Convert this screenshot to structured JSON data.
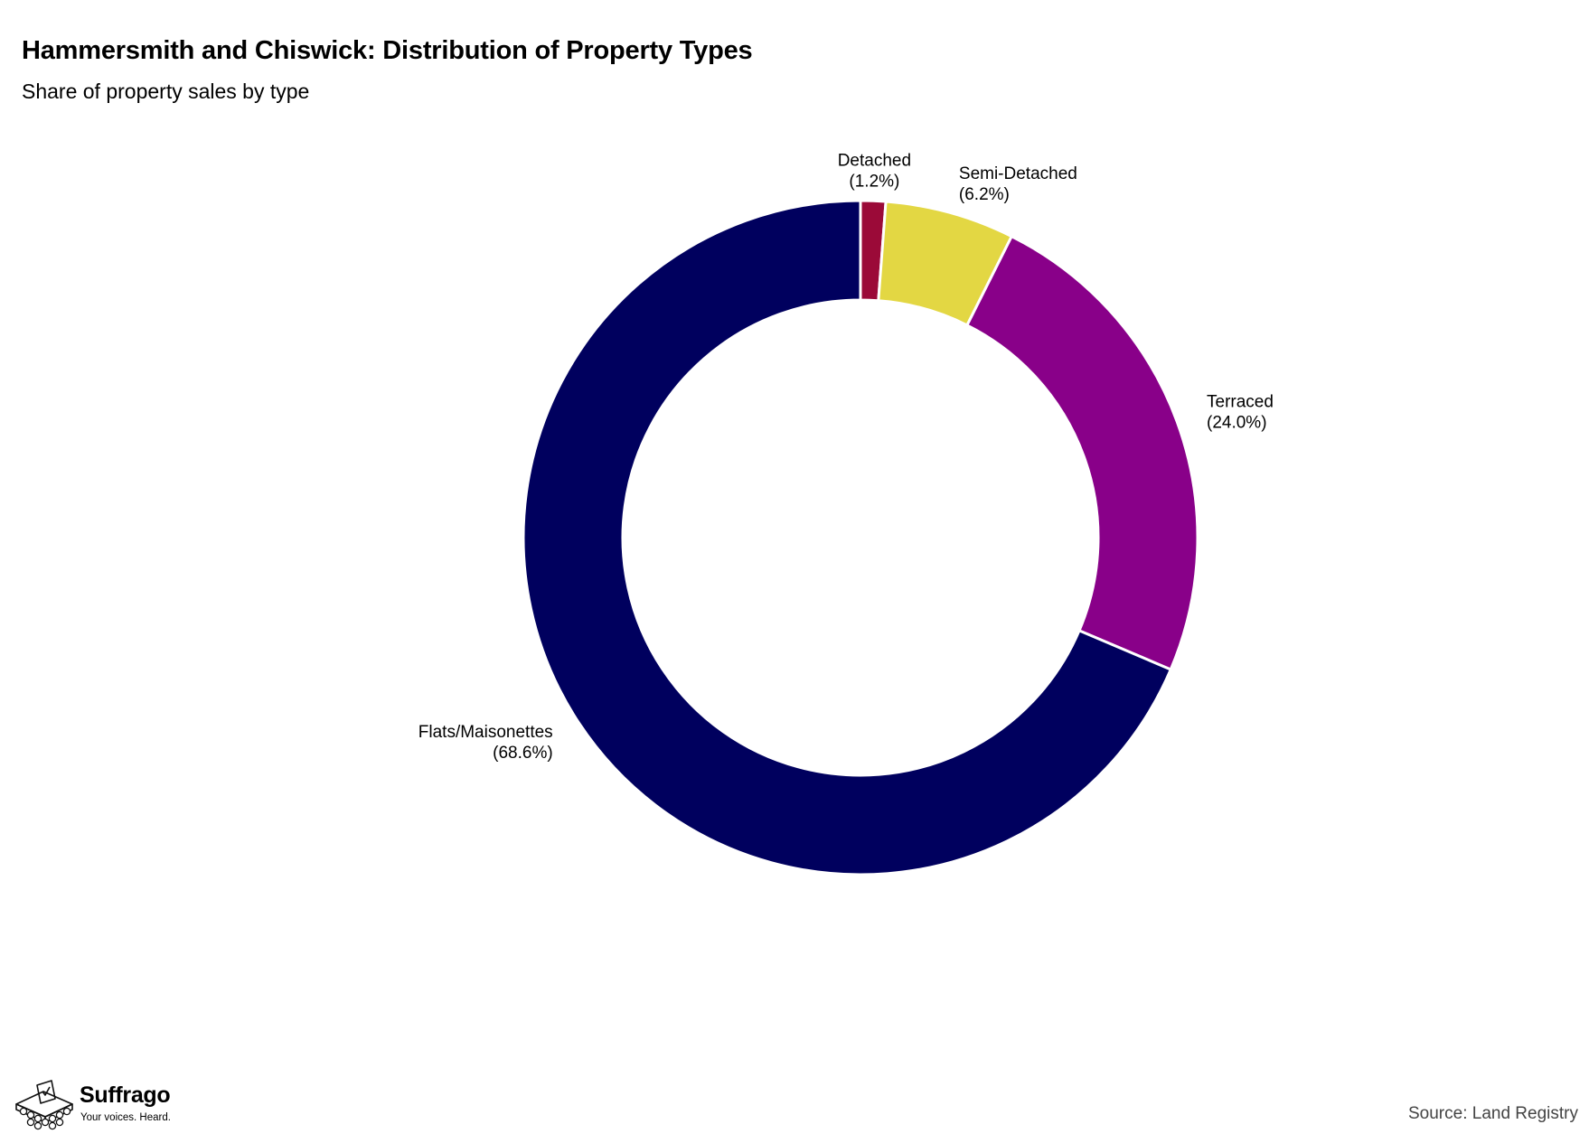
{
  "title": "Hammersmith and Chiswick: Distribution of Property Types",
  "subtitle": "Share of property sales by type",
  "source": "Source: Land Registry",
  "brand": {
    "name": "Suffrago",
    "tagline": "Your voices. Heard."
  },
  "chart_data": {
    "type": "pie",
    "style": "donut",
    "title": "Hammersmith and Chiswick: Distribution of Property Types",
    "subtitle": "Share of property sales by type",
    "start": "12 o'clock",
    "direction": "clockwise",
    "legend": "none",
    "slices": [
      {
        "label": "Detached",
        "value": 1.2,
        "display": "(1.2%)",
        "color": "#9b0a38"
      },
      {
        "label": "Semi-Detached",
        "value": 6.2,
        "display": "(6.2%)",
        "color": "#e3d743"
      },
      {
        "label": "Terraced",
        "value": 24.0,
        "display": "(24.0%)",
        "color": "#890089"
      },
      {
        "label": "Flats/Maisonettes",
        "value": 68.6,
        "display": "(68.6%)",
        "color": "#00005e"
      }
    ]
  }
}
